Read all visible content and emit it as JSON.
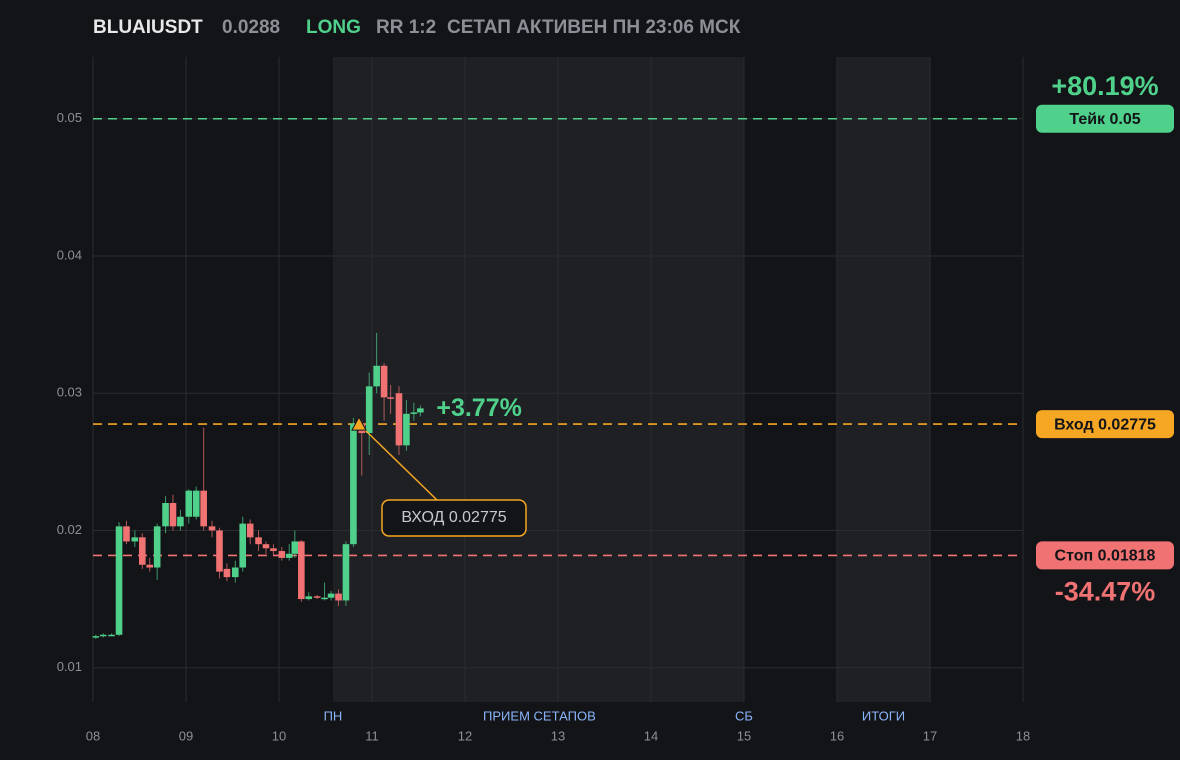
{
  "chart_data": {
    "type": "candlestick",
    "header": {
      "symbol": "BLUAIUSDT",
      "price": 0.0288,
      "side": "LONG",
      "rr": "RR 1:2",
      "status": "СЕТАП АКТИВЕН ПН 23:06 МСК"
    },
    "xlim": [
      8,
      18
    ],
    "xticks": [
      {
        "value": 8,
        "label": "08"
      },
      {
        "value": 9,
        "label": "09"
      },
      10,
      11,
      12,
      13,
      14,
      15,
      16,
      17,
      18
    ],
    "ylim": [
      0.0075,
      0.0545
    ],
    "yticks": [
      0.01,
      0.02,
      0.03,
      0.04,
      0.05
    ],
    "grid": true,
    "shaded": [
      {
        "from": 10.58,
        "to": 15
      },
      {
        "from": 16,
        "to": 17
      }
    ],
    "x_labels": [
      {
        "x": 10.58,
        "label": "ПН"
      },
      {
        "x": 12.8,
        "label": "ПРИЕМ СЕТАПОВ"
      },
      {
        "x": 15,
        "label": "СБ"
      },
      {
        "x": 16.5,
        "label": "ИТОГИ"
      }
    ],
    "up_color": "#4fd18b",
    "down_color": "#f07272",
    "x": [
      8.03,
      8.11,
      8.2,
      8.28,
      8.36,
      8.45,
      8.53,
      8.61,
      8.69,
      8.78,
      8.86,
      8.94,
      9.03,
      9.11,
      9.19,
      9.28,
      9.36,
      9.44,
      9.53,
      9.61,
      9.69,
      9.78,
      9.86,
      9.94,
      10.03,
      10.11,
      10.17,
      10.24,
      10.32,
      10.41,
      10.49,
      10.56,
      10.64,
      10.72,
      10.8,
      10.89,
      10.97,
      11.05,
      11.13,
      11.2,
      11.29,
      11.37,
      11.45,
      11.52
    ],
    "open": [
      0.0122,
      0.0123,
      0.0124,
      0.0124,
      0.0203,
      0.0192,
      0.0195,
      0.0175,
      0.0173,
      0.0203,
      0.022,
      0.0203,
      0.021,
      0.021,
      0.0229,
      0.0203,
      0.02,
      0.0172,
      0.0166,
      0.0173,
      0.0205,
      0.0195,
      0.019,
      0.0187,
      0.0185,
      0.018,
      0.0183,
      0.0192,
      0.015,
      0.0152,
      0.015,
      0.0151,
      0.0154,
      0.0149,
      0.019,
      0.0278,
      0.0271,
      0.0305,
      0.032,
      0.0297,
      0.03,
      0.0262,
      0.0285,
      0.0286
    ],
    "high": [
      0.0124,
      0.0125,
      0.0125,
      0.0206,
      0.0207,
      0.02,
      0.0198,
      0.018,
      0.0205,
      0.0225,
      0.0226,
      0.0215,
      0.023,
      0.0232,
      0.0275,
      0.0207,
      0.0202,
      0.0176,
      0.0178,
      0.021,
      0.0208,
      0.02,
      0.0192,
      0.019,
      0.0188,
      0.019,
      0.02,
      0.0193,
      0.0155,
      0.0153,
      0.0162,
      0.0156,
      0.0157,
      0.0192,
      0.0282,
      0.028,
      0.0315,
      0.0344,
      0.0322,
      0.0306,
      0.0305,
      0.0295,
      0.0293,
      0.0291
    ],
    "low": [
      0.0121,
      0.0122,
      0.0123,
      0.0123,
      0.019,
      0.0188,
      0.0172,
      0.017,
      0.0164,
      0.0198,
      0.02,
      0.02,
      0.0205,
      0.0208,
      0.02,
      0.0195,
      0.0165,
      0.0163,
      0.0162,
      0.017,
      0.019,
      0.0185,
      0.0183,
      0.0182,
      0.0178,
      0.0178,
      0.018,
      0.0148,
      0.0149,
      0.015,
      0.0149,
      0.0149,
      0.0145,
      0.0145,
      0.0188,
      0.024,
      0.0255,
      0.03,
      0.028,
      0.0285,
      0.0255,
      0.0258,
      0.028,
      0.0283
    ],
    "close": [
      0.0123,
      0.0124,
      0.0124,
      0.0203,
      0.0192,
      0.0195,
      0.0175,
      0.0173,
      0.0203,
      0.022,
      0.0203,
      0.021,
      0.0229,
      0.0229,
      0.0203,
      0.02,
      0.017,
      0.0166,
      0.0173,
      0.0205,
      0.0195,
      0.019,
      0.0187,
      0.0185,
      0.018,
      0.0183,
      0.0192,
      0.015,
      0.0152,
      0.0151,
      0.0151,
      0.0154,
      0.0149,
      0.019,
      0.0278,
      0.0271,
      0.0305,
      0.032,
      0.0297,
      0.0296,
      0.0262,
      0.0285,
      0.0286,
      0.0289
    ],
    "levels": [
      {
        "value": 0.05,
        "label": "Тейк 0.05",
        "pct": "+80.19%",
        "color": "#4fd18b"
      },
      {
        "value": 0.02775,
        "label": "Вход 0.02775",
        "color": "#f5a623"
      },
      {
        "value": 0.01818,
        "label": "Стоп 0.01818",
        "pct": "-34.47%",
        "color": "#f07272"
      }
    ],
    "current_change": "+3.77%",
    "entry_marker": {
      "x": 10.86,
      "value": 0.02775,
      "label": "ВХОД 0.02775",
      "color": "#f5a623"
    }
  }
}
